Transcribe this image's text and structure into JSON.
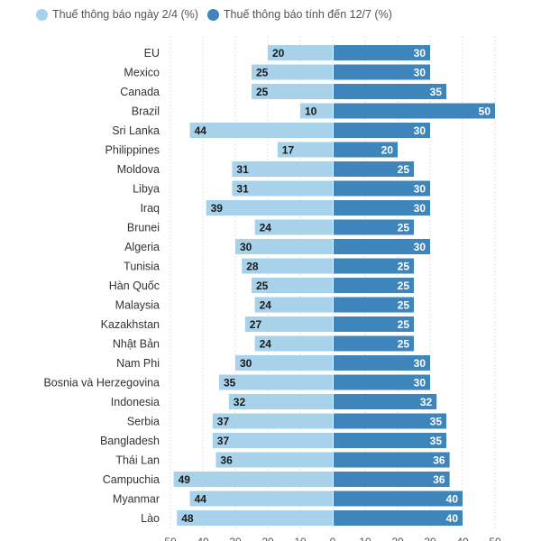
{
  "legend": {
    "series1_label": "Thuế thông báo ngày 2/4 (%)",
    "series2_label": "Thuế thông báo tính đến 12/7 (%)"
  },
  "colors": {
    "series1": "#a8d1ea",
    "series2": "#3d85bb",
    "grid": "#e3e3e3",
    "label_text": "#333333"
  },
  "chart_data": {
    "type": "bar",
    "orientation": "horizontal-diverging",
    "categories": [
      "EU",
      "Mexico",
      "Canada",
      "Brazil",
      "Sri Lanka",
      "Philippines",
      "Moldova",
      "Libya",
      "Iraq",
      "Brunei",
      "Algeria",
      "Tunisia",
      "Hàn Quốc",
      "Malaysia",
      "Kazakhstan",
      "Nhật Bản",
      "Nam Phi",
      "Bosnia và Herzegovina",
      "Indonesia",
      "Serbia",
      "Bangladesh",
      "Thái Lan",
      "Campuchia",
      "Myanmar",
      "Lào"
    ],
    "series": [
      {
        "name": "Thuế thông báo ngày 2/4 (%)",
        "direction": "left",
        "values": [
          20,
          25,
          25,
          10,
          44,
          17,
          31,
          31,
          39,
          24,
          30,
          28,
          25,
          24,
          27,
          24,
          30,
          35,
          32,
          37,
          37,
          36,
          49,
          44,
          48
        ]
      },
      {
        "name": "Thuế thông báo tính đến 12/7 (%)",
        "direction": "right",
        "values": [
          30,
          30,
          35,
          50,
          30,
          20,
          25,
          30,
          30,
          25,
          30,
          25,
          25,
          25,
          25,
          25,
          30,
          30,
          32,
          35,
          35,
          36,
          36,
          40,
          40
        ]
      }
    ],
    "x_ticks": [
      "50",
      "40",
      "30",
      "20",
      "10",
      "0",
      "10",
      "20",
      "30",
      "40",
      "50"
    ],
    "xlim": [
      -50,
      50
    ],
    "grid": true,
    "legend_position": "top-left"
  }
}
